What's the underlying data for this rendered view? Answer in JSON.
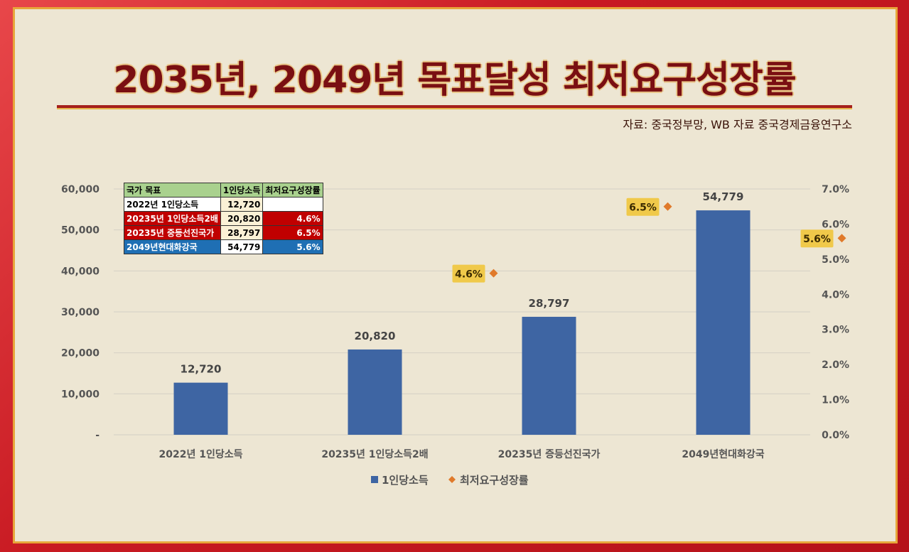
{
  "title": "2035년, 2049년 목표달성 최저요구성장률",
  "source": "자료: 중국정부망, WB 자료 중국경제금융연구소",
  "colors": {
    "bar": "#3e65a3",
    "marker": "#e07a2b",
    "rate_box": "#f0c94a",
    "title": "#7a0f12"
  },
  "table": {
    "headers": [
      "국가 목표",
      "1인당소득",
      "최저요구성장률"
    ],
    "rows": [
      {
        "name": "2022년 1인당소득",
        "income": "12,720",
        "rate": ""
      },
      {
        "name": "20235년 1인당소득2배",
        "income": "20,820",
        "rate": "4.6%"
      },
      {
        "name": "20235년 중등선진국가",
        "income": "28,797",
        "rate": "6.5%"
      },
      {
        "name": "2049년현대화강국",
        "income": "54,779",
        "rate": "5.6%"
      }
    ]
  },
  "chart_data": {
    "type": "bar",
    "categories": [
      "2022년  1인당소득",
      "20235년  1인당소득2배",
      "20235년  증등선진국가",
      "2049년현대화강국"
    ],
    "series": [
      {
        "name": "1인당소득",
        "type": "bar",
        "axis": "left",
        "values": [
          12720,
          20820,
          28797,
          54779
        ],
        "labels": [
          "12,720",
          "20,820",
          "28,797",
          "54,779"
        ]
      },
      {
        "name": "최저요구성장률",
        "type": "scatter",
        "axis": "right",
        "values": [
          null,
          4.6,
          6.5,
          5.6
        ],
        "labels": [
          "",
          "4.6%",
          "6.5%",
          "5.6%"
        ]
      }
    ],
    "ylim": [
      0,
      60000
    ],
    "y_ticks": [
      "-",
      "10,000",
      "20,000",
      "30,000",
      "40,000",
      "50,000",
      "60,000"
    ],
    "y2lim": [
      0,
      7.0
    ],
    "y2_ticks": [
      "0.0%",
      "1.0%",
      "2.0%",
      "3.0%",
      "4.0%",
      "5.0%",
      "6.0%",
      "7.0%"
    ],
    "grid": true,
    "legend": "bottom"
  }
}
